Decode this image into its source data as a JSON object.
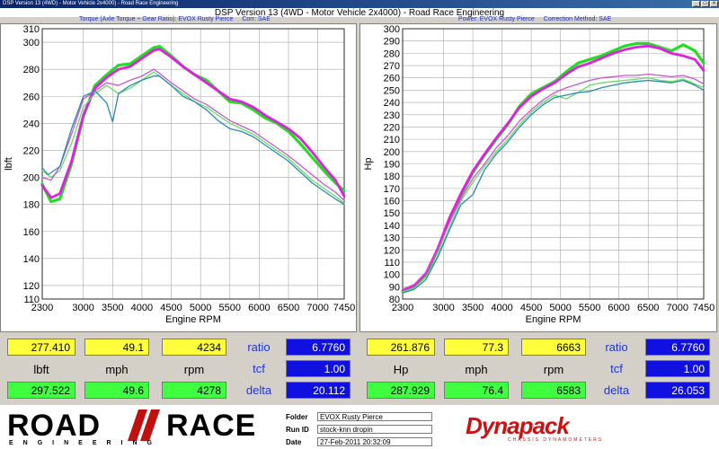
{
  "window": {
    "title": "DSP Version 13 (4WD) - Motor Vehicle 2x4000) - Road Race Engineering"
  },
  "main_title": "DSP Version 13 (4WD - Motor Vehicle 2x4000) - Road Race Engineering",
  "torque_subtitle": {
    "left": "Torque (Axle Torque ÷ Gear Ratio): EVOX Rusty Pierce",
    "right": "Corr: SAE"
  },
  "power_subtitle": {
    "left": "Power: EVOX Rusty Pierce",
    "right": "Correction Method: SAE"
  },
  "chart_data": [
    {
      "type": "line",
      "xlabel": "Engine RPM",
      "ylabel": "lbft",
      "xlim": [
        2300,
        7450
      ],
      "ylim": [
        110,
        310
      ],
      "x_ticks": [
        "2300",
        "3000",
        "3500",
        "4000",
        "4500",
        "5000",
        "5500",
        "6000",
        "6500",
        "7000",
        "7450"
      ],
      "y_ticks": [
        "110",
        "120",
        "140",
        "160",
        "180",
        "200",
        "220",
        "240",
        "260",
        "280",
        "300",
        "310"
      ],
      "grid": true,
      "series": [
        {
          "color": "#22dd22",
          "width": 3.2,
          "x": [
            2300,
            2450,
            2600,
            2800,
            3000,
            3200,
            3400,
            3600,
            3800,
            4000,
            4200,
            4300,
            4500,
            4700,
            4900,
            5100,
            5300,
            5500,
            5700,
            5900,
            6100,
            6300,
            6500,
            6700,
            6900,
            7100,
            7300,
            7450
          ],
          "y": [
            195,
            182,
            184,
            210,
            245,
            268,
            276,
            283,
            284,
            290,
            296,
            297,
            290,
            282,
            276,
            272,
            264,
            256,
            255,
            250,
            244,
            240,
            234,
            225,
            215,
            205,
            196,
            190
          ]
        },
        {
          "color": "#e020e0",
          "width": 2.8,
          "x": [
            2300,
            2450,
            2600,
            2800,
            3000,
            3200,
            3400,
            3600,
            3800,
            4000,
            4200,
            4300,
            4500,
            4700,
            4900,
            5100,
            5300,
            5500,
            5700,
            5900,
            6100,
            6300,
            6500,
            6700,
            6900,
            7100,
            7300,
            7450
          ],
          "y": [
            194,
            185,
            188,
            212,
            246,
            266,
            274,
            280,
            282,
            288,
            294,
            295,
            289,
            282,
            276,
            270,
            264,
            258,
            256,
            252,
            246,
            241,
            236,
            229,
            219,
            208,
            198,
            186
          ]
        },
        {
          "color": "#66dd66",
          "width": 1.3,
          "x": [
            2300,
            2450,
            2600,
            2800,
            3000,
            3200,
            3400,
            3600,
            3800,
            4000,
            4200,
            4300,
            4500,
            4700,
            4900,
            5100,
            5300,
            5500,
            5700,
            5900,
            6100,
            6300,
            6500,
            6700,
            6900,
            7100,
            7300,
            7450
          ],
          "y": [
            205,
            200,
            205,
            225,
            252,
            262,
            268,
            262,
            266,
            272,
            278,
            275,
            268,
            262,
            256,
            252,
            246,
            240,
            236,
            232,
            226,
            220,
            214,
            206,
            198,
            192,
            186,
            181
          ]
        },
        {
          "color": "#cc55cc",
          "width": 1.3,
          "x": [
            2300,
            2450,
            2600,
            2800,
            3000,
            3200,
            3400,
            3600,
            3800,
            4000,
            4200,
            4300,
            4500,
            4700,
            4900,
            5100,
            5300,
            5500,
            5700,
            5900,
            6100,
            6300,
            6500,
            6700,
            6900,
            7100,
            7300,
            7450
          ],
          "y": [
            200,
            198,
            208,
            232,
            258,
            264,
            270,
            268,
            272,
            275,
            280,
            277,
            270,
            264,
            258,
            254,
            248,
            242,
            238,
            234,
            228,
            222,
            216,
            209,
            202,
            195,
            189,
            183
          ]
        },
        {
          "color": "#2a8ab0",
          "width": 1.3,
          "x": [
            2300,
            2400,
            2600,
            2800,
            3000,
            3200,
            3400,
            3500,
            3600,
            3800,
            4000,
            4200,
            4300,
            4500,
            4700,
            4900,
            5100,
            5300,
            5500,
            5700,
            5900,
            6100,
            6300,
            6500,
            6700,
            6900,
            7100,
            7300,
            7450
          ],
          "y": [
            207,
            202,
            208,
            236,
            260,
            264,
            255,
            241,
            262,
            268,
            272,
            275,
            275,
            268,
            260,
            256,
            250,
            242,
            236,
            234,
            230,
            224,
            218,
            212,
            204,
            196,
            190,
            184,
            180
          ]
        }
      ]
    },
    {
      "type": "line",
      "xlabel": "Engine RPM",
      "ylabel": "Hp",
      "xlim": [
        2300,
        7450
      ],
      "ylim": [
        80,
        300
      ],
      "x_ticks": [
        "2300",
        "3000",
        "3500",
        "4000",
        "4500",
        "5000",
        "5500",
        "6000",
        "6500",
        "7000",
        "7450"
      ],
      "y_ticks": [
        "80",
        "90",
        "100",
        "110",
        "120",
        "130",
        "140",
        "150",
        "160",
        "170",
        "180",
        "190",
        "200",
        "210",
        "220",
        "230",
        "240",
        "250",
        "260",
        "270",
        "280",
        "290",
        "300"
      ],
      "grid": true,
      "series": [
        {
          "color": "#22dd22",
          "width": 3.2,
          "x": [
            2300,
            2500,
            2700,
            2900,
            3100,
            3300,
            3500,
            3700,
            3900,
            4100,
            4300,
            4500,
            4700,
            4900,
            5100,
            5300,
            5500,
            5700,
            5900,
            6100,
            6300,
            6500,
            6700,
            6900,
            7100,
            7300,
            7450
          ],
          "y": [
            86,
            90,
            100,
            120,
            145,
            165,
            183,
            197,
            210,
            222,
            237,
            247,
            252,
            257,
            265,
            272,
            275,
            278,
            282,
            286,
            288,
            288,
            285,
            282,
            287,
            282,
            272
          ]
        },
        {
          "color": "#e020e0",
          "width": 2.8,
          "x": [
            2300,
            2500,
            2700,
            2900,
            3100,
            3300,
            3500,
            3700,
            3900,
            4100,
            4300,
            4500,
            4700,
            4900,
            5100,
            5300,
            5500,
            5700,
            5900,
            6100,
            6300,
            6500,
            6700,
            6900,
            7100,
            7300,
            7450
          ],
          "y": [
            87,
            91,
            101,
            121,
            146,
            166,
            184,
            198,
            211,
            223,
            236,
            245,
            251,
            256,
            263,
            269,
            272,
            276,
            280,
            283,
            285,
            286,
            284,
            280,
            278,
            275,
            266
          ]
        },
        {
          "color": "#66dd66",
          "width": 1.3,
          "x": [
            2300,
            2500,
            2700,
            2900,
            3100,
            3300,
            3500,
            3700,
            3900,
            4100,
            4300,
            4500,
            4700,
            4900,
            5100,
            5300,
            5500,
            5700,
            5900,
            6100,
            6300,
            6500,
            6700,
            6900,
            7100,
            7300,
            7450
          ],
          "y": [
            86,
            89,
            98,
            115,
            138,
            160,
            175,
            188,
            200,
            210,
            222,
            232,
            240,
            246,
            243,
            248,
            254,
            256,
            257,
            258,
            259,
            260,
            258,
            257,
            259,
            255,
            252
          ]
        },
        {
          "color": "#cc55cc",
          "width": 1.3,
          "x": [
            2300,
            2500,
            2700,
            2900,
            3100,
            3300,
            3500,
            3700,
            3900,
            4100,
            4300,
            4500,
            4700,
            4900,
            5100,
            5300,
            5500,
            5700,
            5900,
            6100,
            6300,
            6500,
            6700,
            6900,
            7100,
            7300,
            7450
          ],
          "y": [
            88,
            92,
            102,
            120,
            142,
            162,
            178,
            190,
            203,
            213,
            225,
            234,
            242,
            248,
            252,
            255,
            258,
            260,
            261,
            262,
            262,
            263,
            262,
            261,
            262,
            259,
            255
          ]
        },
        {
          "color": "#2a8ab0",
          "width": 1.3,
          "x": [
            2300,
            2500,
            2700,
            2900,
            3100,
            3300,
            3500,
            3700,
            3900,
            4100,
            4300,
            4500,
            4700,
            4900,
            5100,
            5300,
            5500,
            5700,
            5900,
            6100,
            6300,
            6500,
            6700,
            6900,
            7100,
            7300,
            7450
          ],
          "y": [
            85,
            88,
            96,
            114,
            136,
            157,
            165,
            185,
            198,
            208,
            220,
            230,
            238,
            244,
            246,
            248,
            249,
            252,
            254,
            256,
            257,
            258,
            257,
            256,
            258,
            254,
            250
          ]
        }
      ]
    }
  ],
  "left_panel": {
    "row1": [
      "277.410",
      "49.1",
      "4234"
    ],
    "units": [
      "lbft",
      "mph",
      "rpm"
    ],
    "row3": [
      "297.522",
      "49.6",
      "4278"
    ],
    "right_labels": [
      "ratio",
      "tcf",
      "delta"
    ],
    "right_values": [
      "6.7760",
      "1.00",
      "20.112"
    ]
  },
  "right_panel": {
    "row1": [
      "261.876",
      "77.3",
      "6663"
    ],
    "units": [
      "Hp",
      "mph",
      "rpm"
    ],
    "row3": [
      "287.929",
      "76.4",
      "6583"
    ],
    "right_labels": [
      "ratio",
      "tcf",
      "delta"
    ],
    "right_values": [
      "6.7760",
      "1.00",
      "26.053"
    ]
  },
  "logo": {
    "road": "ROAD",
    "race": "RACE",
    "engineering": "ENGINEERING"
  },
  "info": {
    "folder_label": "Folder",
    "folder_value": "EVOX Rusty Pierce",
    "runid_label": "Run ID",
    "runid_value": "stock-knn dropin",
    "date_label": "Date",
    "date_value": "27-Feb-2011 20:32:09"
  },
  "brand": {
    "name": "Dynapack",
    "tagline": "CHASSIS DYNAMOMETERS"
  }
}
